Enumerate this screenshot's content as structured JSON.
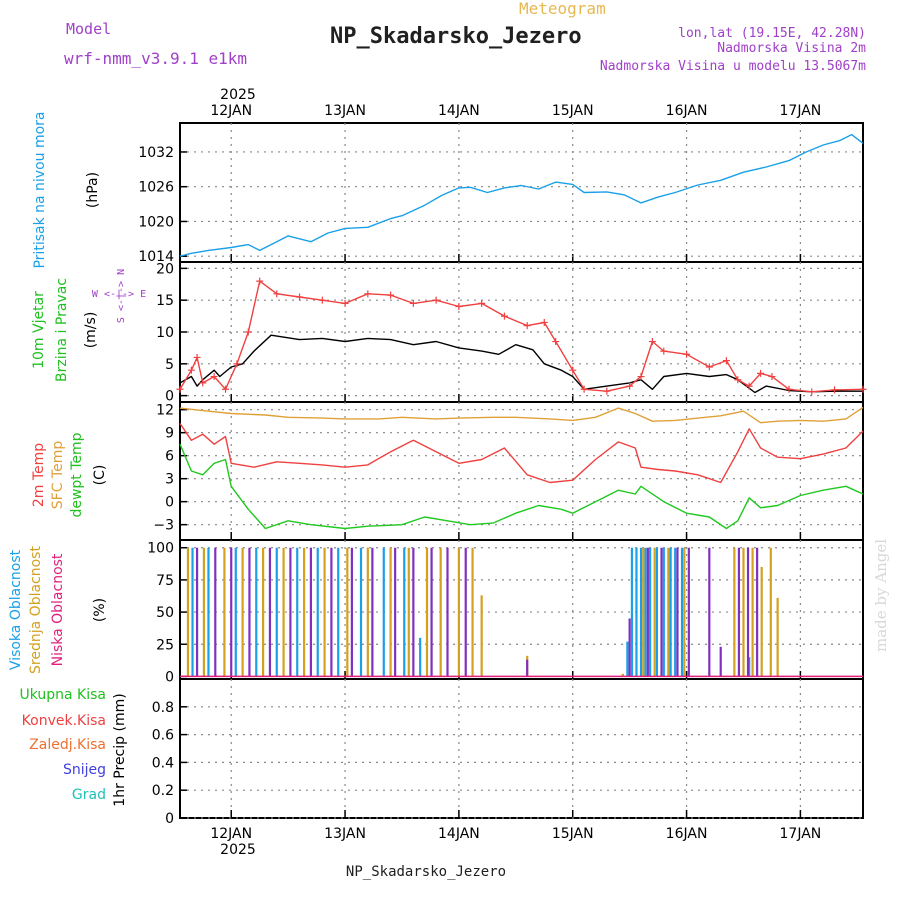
{
  "header": {
    "model_label": "Model",
    "model_name": "wrf-nmm_v3.9.1 e1km",
    "meteogram_label": "Meteogram",
    "station_title": "NP_Skadarsko_Jezero",
    "lonlat": "lon,lat (19.15E, 42.28N)",
    "altitude": "Nadmorska Visina 2m",
    "model_altitude": "Nadmorska Visina u modelu 13.5067m",
    "footer_station": "NP_Skadarsko_Jezero",
    "watermark": "made by Angel",
    "colors": {
      "model": "#a040c8",
      "meteogram": "#e8b850",
      "info": "#a040c8",
      "watermark": "#d8d8d8"
    }
  },
  "time_axis": {
    "year": "2025",
    "labels": [
      "12JAN",
      "13JAN",
      "14JAN",
      "15JAN",
      "16JAN",
      "17JAN"
    ]
  },
  "panels": {
    "pressure": {
      "title": "Pritisak na nivou mora",
      "unit": "(hPa)",
      "ticks": [
        "1014",
        "1020",
        "1026",
        "1032"
      ]
    },
    "wind": {
      "title1": "10m Vjetar",
      "title2": "Brzina i Pravac",
      "unit": "(m/s)",
      "ticks": [
        "0",
        "5",
        "10",
        "15",
        "20"
      ],
      "compass": "W  <-|->  E",
      "compass2": "S <-|-> N"
    },
    "temp": {
      "line1": "2m Temp",
      "line2": "SFC Temp",
      "line3": "dewpt Temp",
      "unit": "(C)",
      "ticks": [
        "−3",
        "0",
        "3",
        "6",
        "9",
        "12"
      ]
    },
    "cloud": {
      "line1": "Visoka Oblacnost",
      "line2": "Srednja Oblacnost",
      "line3": "Niska Oblacnost",
      "unit": "(%)",
      "ticks": [
        "0",
        "25",
        "50",
        "75",
        "100"
      ]
    },
    "precip": {
      "legend": [
        "Ukupna Kisa",
        "Konvek.Kisa",
        "Zaledj.Kisa",
        "Snijeg",
        "Grad"
      ],
      "unit": "1hr Precip (mm)",
      "ticks": [
        "0",
        "0.2",
        "0.4",
        "0.6",
        "0.8"
      ]
    }
  },
  "chart_data": [
    {
      "type": "line",
      "title": "Pritisak na nivou mora",
      "ylabel": "(hPa)",
      "ylim": [
        1013,
        1037
      ],
      "xlim": [
        -0.45,
        5.55
      ],
      "series": [
        {
          "name": "Pritisak na nivou mora",
          "color": "#1aa0e8",
          "x": [
            -0.45,
            -0.35,
            -0.2,
            0.0,
            0.15,
            0.25,
            0.4,
            0.5,
            0.7,
            0.85,
            1.0,
            1.2,
            1.4,
            1.5,
            1.7,
            1.85,
            2.0,
            2.1,
            2.25,
            2.4,
            2.55,
            2.7,
            2.85,
            3.0,
            3.1,
            3.3,
            3.45,
            3.6,
            3.75,
            3.9,
            4.1,
            4.3,
            4.5,
            4.7,
            4.9,
            5.05,
            5.2,
            5.35,
            5.45,
            5.55
          ],
          "y": [
            1014.0,
            1014.5,
            1015.0,
            1015.5,
            1016.0,
            1015.0,
            1016.5,
            1017.5,
            1016.5,
            1018.0,
            1018.8,
            1019.0,
            1020.5,
            1021.0,
            1022.8,
            1024.5,
            1025.8,
            1025.9,
            1025.0,
            1025.8,
            1026.2,
            1025.6,
            1026.8,
            1026.4,
            1025.0,
            1025.1,
            1024.6,
            1023.2,
            1024.2,
            1025.0,
            1026.3,
            1027.1,
            1028.5,
            1029.4,
            1030.5,
            1032.0,
            1033.2,
            1034.0,
            1035.0,
            1033.5
          ]
        }
      ]
    },
    {
      "type": "line",
      "title": "10m Vjetar Brzina i Pravac",
      "ylabel": "(m/s)",
      "ylim": [
        -1,
        21
      ],
      "xlim": [
        -0.45,
        5.55
      ],
      "series": [
        {
          "name": "10m Vjetar",
          "color": "#000000",
          "x": [
            -0.45,
            -0.35,
            -0.3,
            -0.25,
            -0.15,
            -0.1,
            0.0,
            0.1,
            0.2,
            0.35,
            0.6,
            0.8,
            1.0,
            1.2,
            1.4,
            1.6,
            1.8,
            2.0,
            2.2,
            2.35,
            2.5,
            2.65,
            2.75,
            2.9,
            3.0,
            3.1,
            3.3,
            3.5,
            3.6,
            3.7,
            3.8,
            4.0,
            4.2,
            4.35,
            4.45,
            4.6,
            4.7,
            4.9,
            5.1,
            5.3,
            5.55
          ],
          "y": [
            2.0,
            3.0,
            1.5,
            2.5,
            4.0,
            3.0,
            4.5,
            5.0,
            7.0,
            9.5,
            8.8,
            9.0,
            8.5,
            9.0,
            8.8,
            8.0,
            8.5,
            7.5,
            7.0,
            6.5,
            8.0,
            7.2,
            5.0,
            4.0,
            3.0,
            1.0,
            1.5,
            2.0,
            2.5,
            1.0,
            3.0,
            3.5,
            3.0,
            3.3,
            2.5,
            0.5,
            1.5,
            0.8,
            0.6,
            0.7,
            0.7
          ]
        },
        {
          "name": "10m Vjetar",
          "color": "#f04040",
          "x": [
            -0.45,
            -0.35,
            -0.3,
            -0.25,
            -0.15,
            -0.05,
            0.05,
            0.15,
            0.25,
            0.4,
            0.6,
            0.8,
            1.0,
            1.2,
            1.4,
            1.6,
            1.8,
            2.0,
            2.2,
            2.4,
            2.6,
            2.75,
            2.85,
            3.0,
            3.1,
            3.3,
            3.5,
            3.6,
            3.7,
            3.8,
            4.0,
            4.2,
            4.35,
            4.45,
            4.55,
            4.65,
            4.75,
            4.9,
            5.1,
            5.3,
            5.55
          ],
          "y": [
            1.0,
            4.0,
            6.0,
            2.0,
            3.0,
            1.0,
            5.0,
            10.0,
            18.0,
            16.0,
            15.5,
            15.0,
            14.5,
            16.0,
            15.8,
            14.5,
            15.0,
            14.0,
            14.5,
            12.5,
            11.0,
            11.5,
            8.5,
            4.0,
            1.0,
            0.7,
            1.5,
            3.0,
            8.5,
            7.0,
            6.5,
            4.5,
            5.5,
            2.5,
            1.5,
            3.5,
            3.0,
            1.0,
            0.6,
            0.9,
            1.0
          ]
        }
      ]
    },
    {
      "type": "line",
      "title": "2m Temp, SFC Temp, dewpt Temp",
      "ylabel": "(C)",
      "ylim": [
        -5,
        13
      ],
      "xlim": [
        -0.45,
        5.55
      ],
      "series": [
        {
          "name": "SFC Temp",
          "color": "#e0a038",
          "x": [
            -0.45,
            -0.2,
            0.0,
            0.3,
            0.5,
            0.8,
            1.0,
            1.3,
            1.5,
            1.8,
            2.0,
            2.3,
            2.5,
            2.8,
            3.0,
            3.2,
            3.4,
            3.55,
            3.7,
            3.9,
            4.1,
            4.3,
            4.5,
            4.65,
            4.8,
            5.0,
            5.2,
            5.4,
            5.55
          ],
          "y": [
            12.2,
            11.8,
            11.5,
            11.3,
            11.0,
            10.9,
            10.8,
            10.8,
            11.0,
            10.8,
            10.9,
            11.0,
            11.0,
            10.8,
            10.6,
            11.0,
            12.2,
            11.5,
            10.5,
            10.6,
            10.9,
            11.2,
            11.8,
            10.3,
            10.5,
            10.6,
            10.5,
            10.8,
            12.3
          ]
        },
        {
          "name": "2m Temp",
          "color": "#f04040",
          "x": [
            -0.45,
            -0.35,
            -0.25,
            -0.15,
            -0.05,
            0.0,
            0.2,
            0.4,
            0.6,
            0.8,
            1.0,
            1.2,
            1.4,
            1.6,
            1.8,
            2.0,
            2.2,
            2.4,
            2.6,
            2.8,
            3.0,
            3.2,
            3.4,
            3.55,
            3.6,
            3.75,
            3.9,
            4.1,
            4.3,
            4.45,
            4.55,
            4.65,
            4.8,
            5.0,
            5.2,
            5.4,
            5.55
          ],
          "y": [
            10.2,
            8.0,
            8.8,
            7.5,
            8.5,
            5.0,
            4.5,
            5.2,
            5.0,
            4.8,
            4.5,
            4.8,
            6.5,
            8.0,
            6.5,
            5.0,
            5.5,
            7.0,
            3.5,
            2.5,
            2.8,
            5.5,
            7.8,
            7.0,
            4.5,
            4.2,
            4.0,
            3.5,
            2.5,
            6.5,
            9.5,
            7.0,
            5.8,
            5.6,
            6.2,
            7.0,
            9.2
          ]
        },
        {
          "name": "dewpt Temp",
          "color": "#20c820",
          "x": [
            -0.45,
            -0.35,
            -0.25,
            -0.15,
            -0.05,
            0.0,
            0.15,
            0.3,
            0.5,
            0.7,
            1.0,
            1.2,
            1.5,
            1.7,
            1.9,
            2.1,
            2.3,
            2.5,
            2.7,
            2.9,
            3.0,
            3.2,
            3.4,
            3.55,
            3.6,
            3.8,
            4.0,
            4.2,
            4.35,
            4.45,
            4.55,
            4.65,
            4.8,
            5.0,
            5.2,
            5.4,
            5.55
          ],
          "y": [
            7.5,
            4.0,
            3.5,
            5.0,
            5.5,
            2.0,
            -1.0,
            -3.5,
            -2.5,
            -3.0,
            -3.5,
            -3.2,
            -3.0,
            -2.0,
            -2.5,
            -3.0,
            -2.8,
            -1.5,
            -0.5,
            -1.0,
            -1.5,
            0.0,
            1.5,
            1.0,
            2.0,
            0.0,
            -1.5,
            -2.0,
            -3.5,
            -2.5,
            0.5,
            -0.8,
            -0.5,
            0.8,
            1.5,
            2.0,
            1.0
          ]
        }
      ]
    },
    {
      "type": "bar",
      "title": "Visoka, Srednja, Niska Oblacnost",
      "ylabel": "(%)",
      "ylim": [
        -2,
        106
      ],
      "xlim": [
        -0.45,
        5.55
      ],
      "series": [
        {
          "name": "Visoka Oblacnost",
          "color": "#1aa0e8",
          "x": [
            -0.34,
            -0.2,
            0.04,
            0.22,
            0.4,
            0.58,
            0.76,
            0.94,
            1.14,
            1.34,
            1.52,
            1.66,
            3.48,
            3.52,
            3.56,
            3.6,
            3.64,
            3.68,
            3.74,
            3.8,
            3.86,
            3.9,
            3.96,
            4.55
          ],
          "y": [
            100,
            100,
            100,
            100,
            100,
            100,
            100,
            100,
            100,
            100,
            100,
            30,
            27,
            100,
            100,
            100,
            100,
            100,
            100,
            100,
            100,
            100,
            100,
            15
          ]
        },
        {
          "name": "Srednja Oblacnost",
          "color": "#d4a020",
          "x": [
            -0.38,
            -0.24,
            -0.06,
            0.1,
            0.28,
            0.46,
            0.64,
            0.82,
            1.02,
            1.2,
            1.4,
            1.56,
            1.72,
            1.84,
            2.0,
            2.12,
            2.2,
            2.6,
            3.44,
            3.62,
            3.72,
            3.84,
            3.98,
            4.42,
            4.5,
            4.58,
            4.66,
            4.74,
            4.8
          ],
          "y": [
            100,
            100,
            100,
            100,
            100,
            100,
            100,
            100,
            100,
            100,
            100,
            100,
            100,
            100,
            100,
            100,
            63,
            16,
            2,
            100,
            100,
            100,
            100,
            100,
            100,
            100,
            85,
            100,
            61
          ]
        },
        {
          "name": "Niska Oblacnost",
          "color": "#8030c0",
          "x": [
            -0.3,
            -0.14,
            0.0,
            0.16,
            0.34,
            0.52,
            0.7,
            0.88,
            1.06,
            1.24,
            1.44,
            1.6,
            1.76,
            1.9,
            2.06,
            2.6,
            3.5,
            3.66,
            3.78,
            3.92,
            4.02,
            4.2,
            4.3,
            4.46,
            4.54,
            4.62
          ],
          "y": [
            100,
            100,
            100,
            100,
            100,
            100,
            100,
            100,
            100,
            100,
            100,
            100,
            100,
            100,
            100,
            13,
            45,
            100,
            100,
            100,
            100,
            100,
            23,
            100,
            100,
            100
          ]
        }
      ]
    },
    {
      "type": "bar",
      "title": "1hr Precip",
      "ylabel": "1hr Precip (mm)",
      "ylim": [
        0,
        1.0
      ],
      "xlim": [
        -0.45,
        5.55
      ],
      "series": [
        {
          "name": "Ukupna Kisa",
          "color": "#20c020",
          "x": [],
          "y": []
        },
        {
          "name": "Konvek.Kisa",
          "color": "#f04040",
          "x": [],
          "y": []
        },
        {
          "name": "Zaledj.Kisa",
          "color": "#f07030",
          "x": [],
          "y": []
        },
        {
          "name": "Snijeg",
          "color": "#4040e0",
          "x": [],
          "y": []
        },
        {
          "name": "Grad",
          "color": "#20c0b8",
          "x": [],
          "y": []
        }
      ]
    }
  ]
}
